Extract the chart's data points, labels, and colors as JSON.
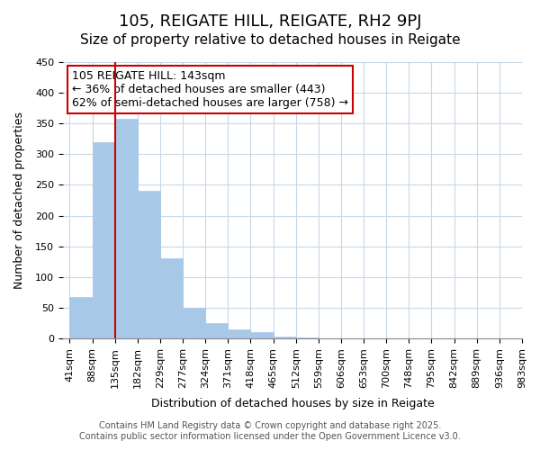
{
  "title": "105, REIGATE HILL, REIGATE, RH2 9PJ",
  "subtitle": "Size of property relative to detached houses in Reigate",
  "xlabel": "Distribution of detached houses by size in Reigate",
  "ylabel": "Number of detached properties",
  "bar_values": [
    67,
    320,
    358,
    240,
    130,
    50,
    25,
    15,
    10,
    3,
    1,
    0,
    0,
    0,
    0,
    0,
    0,
    0,
    0,
    0
  ],
  "bar_labels": [
    "41sqm",
    "88sqm",
    "135sqm",
    "182sqm",
    "229sqm",
    "277sqm",
    "324sqm",
    "371sqm",
    "418sqm",
    "465sqm",
    "512sqm",
    "559sqm",
    "606sqm",
    "653sqm",
    "700sqm",
    "748sqm",
    "795sqm",
    "842sqm",
    "889sqm",
    "936sqm",
    "983sqm"
  ],
  "bar_color": "#a8c8e8",
  "bar_edge_color": "#a8c8e8",
  "vline_x": 2,
  "vline_color": "#cc0000",
  "ylim": [
    0,
    450
  ],
  "yticks": [
    0,
    50,
    100,
    150,
    200,
    250,
    300,
    350,
    400,
    450
  ],
  "annotation_title": "105 REIGATE HILL: 143sqm",
  "annotation_line1": "← 36% of detached houses are smaller (443)",
  "annotation_line2": "62% of semi-detached houses are larger (758) →",
  "footer1": "Contains HM Land Registry data © Crown copyright and database right 2025.",
  "footer2": "Contains public sector information licensed under the Open Government Licence v3.0.",
  "background_color": "#ffffff",
  "grid_color": "#c8d8e8",
  "title_fontsize": 13,
  "subtitle_fontsize": 11,
  "axis_label_fontsize": 9,
  "tick_fontsize": 8,
  "annotation_fontsize": 9,
  "footer_fontsize": 7
}
